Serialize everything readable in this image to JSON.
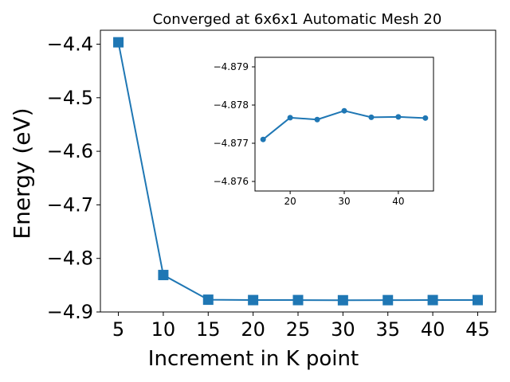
{
  "chart_data": [
    {
      "type": "line",
      "title": "Converged at 6x6x1 Automatic Mesh 20",
      "xlabel": "Increment in K point",
      "ylabel": "Energy (eV)",
      "x": [
        5,
        10,
        15,
        20,
        25,
        30,
        35,
        40,
        45
      ],
      "series": [
        {
          "values": [
            -4.3965,
            -4.831,
            -4.8771,
            -4.8778,
            -4.8778,
            -4.8781,
            -4.8779,
            -4.8778,
            -4.8778
          ],
          "marker": "square",
          "color": "#1f77b4"
        }
      ],
      "xlim": [
        3.0,
        47.0
      ],
      "ylim": [
        -4.9,
        -4.374
      ],
      "xticks": [
        5,
        10,
        15,
        20,
        25,
        30,
        35,
        40,
        45
      ],
      "yticks": [
        -4.4,
        -4.5,
        -4.6,
        -4.7,
        -4.8,
        -4.9
      ],
      "ytick_labels": [
        "−4.4",
        "−4.5",
        "−4.6",
        "−4.7",
        "−4.8",
        "−4.9"
      ],
      "grid": false
    },
    {
      "type": "line",
      "role": "inset",
      "x": [
        15,
        20,
        25,
        30,
        35,
        40,
        45
      ],
      "series": [
        {
          "values": [
            -4.8771,
            -4.87767,
            -4.87762,
            -4.87785,
            -4.87768,
            -4.87769,
            -4.87766
          ],
          "marker": "circle",
          "color": "#1f77b4"
        }
      ],
      "xlim": [
        13.5,
        46.5
      ],
      "ylim": [
        -4.87925,
        -4.87575
      ],
      "y_inverted": true,
      "xticks": [
        20,
        30,
        40
      ],
      "yticks": [
        -4.879,
        -4.878,
        -4.877,
        -4.876
      ],
      "ytick_labels": [
        "−4.879",
        "−4.878",
        "−4.877",
        "−4.876"
      ],
      "grid": false
    }
  ]
}
